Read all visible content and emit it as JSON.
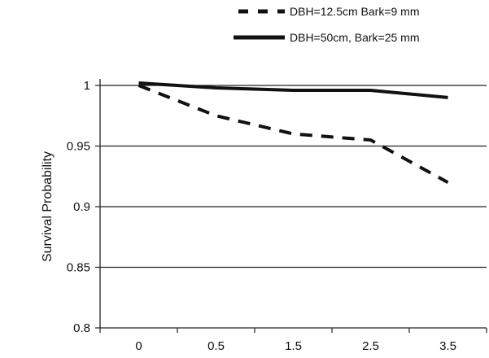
{
  "chart_data": {
    "type": "line",
    "title": "",
    "xlabel": "",
    "ylabel": "Survival Probability",
    "x_ticks": [
      "0",
      "0.5",
      "1.5",
      "2.5",
      "3.5"
    ],
    "y_ticks": [
      "0.8",
      "0.85",
      "0.9",
      "0.95",
      "1"
    ],
    "ylim": [
      0.8,
      1.0
    ],
    "grid": "horizontal",
    "legend_position": "top-right",
    "series": [
      {
        "name": "DBH=12.5cm  Bark=9 mm",
        "style": "dashed",
        "color": "#111111",
        "values": [
          1.0,
          0.975,
          0.96,
          0.955,
          0.92
        ]
      },
      {
        "name": "DBH=50cm,  Bark=25 mm",
        "style": "solid",
        "color": "#111111",
        "values": [
          1.002,
          0.998,
          0.996,
          0.996,
          0.99
        ]
      }
    ]
  }
}
